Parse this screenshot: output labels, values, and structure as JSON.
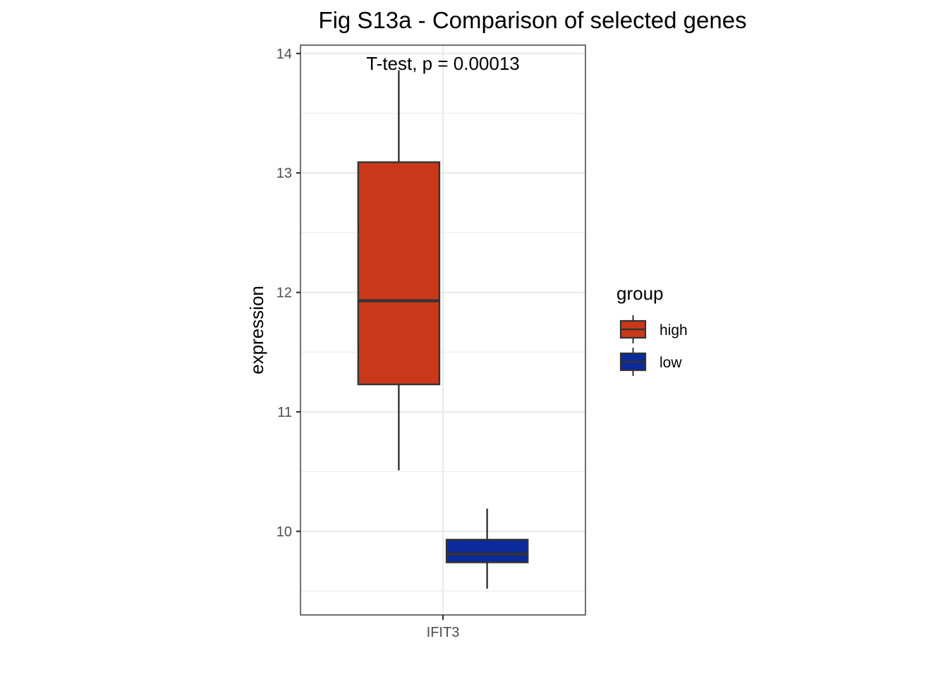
{
  "chart_data": {
    "type": "boxplot",
    "title": "Fig S13a - Comparison of selected genes",
    "xlabel": "",
    "ylabel": "expression",
    "categories": [
      "IFIT3"
    ],
    "ylim": [
      9.3,
      14.07
    ],
    "y_ticks": [
      10,
      11,
      12,
      13,
      14
    ],
    "y_tick_labels": [
      "10",
      "11",
      "12",
      "13",
      "14"
    ],
    "grid": true,
    "annotation": "T-test, p = 0.00013",
    "legend": {
      "title": "group",
      "position": "right"
    },
    "series": [
      {
        "name": "high",
        "color": "#c93919",
        "boxes": [
          {
            "category": "IFIT3",
            "min": 10.51,
            "q1": 11.23,
            "median": 11.93,
            "q3": 13.09,
            "max": 13.86
          }
        ]
      },
      {
        "name": "low",
        "color": "#0b2a9c",
        "boxes": [
          {
            "category": "IFIT3",
            "min": 9.52,
            "q1": 9.74,
            "median": 9.81,
            "q3": 9.93,
            "max": 10.19
          }
        ]
      }
    ]
  }
}
